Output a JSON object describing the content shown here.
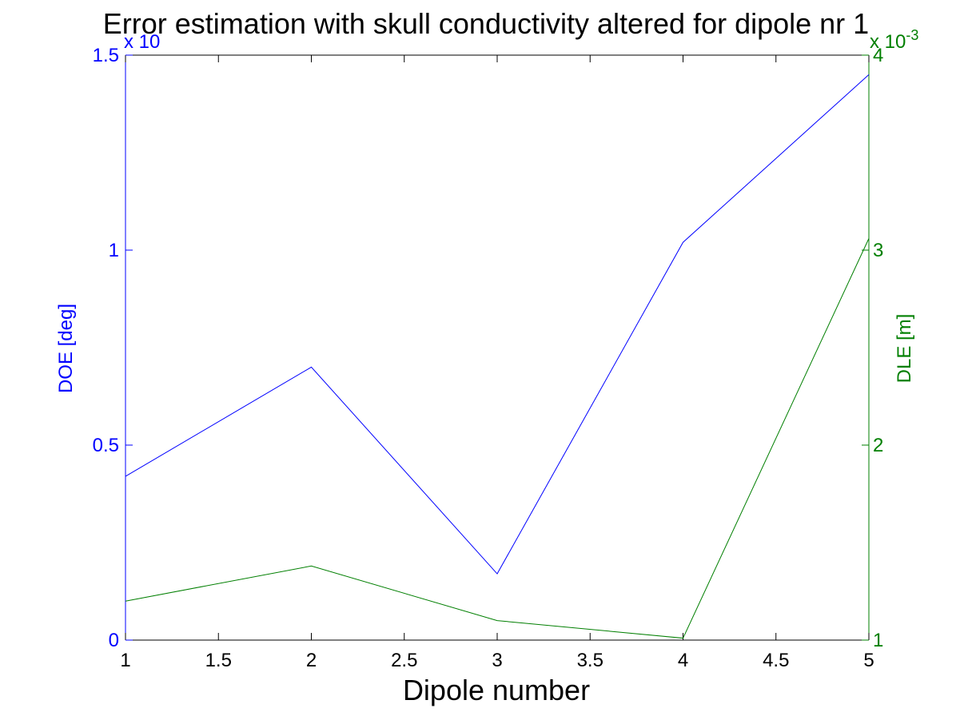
{
  "chart_data": {
    "type": "line",
    "title": "Error estimation with skull conductivity altered for dipole nr 1",
    "xlabel": "Dipole number",
    "xlim": [
      1,
      5
    ],
    "xticks": [
      1,
      1.5,
      2,
      2.5,
      3,
      3.5,
      4,
      4.5,
      5
    ],
    "xtick_labels": [
      "1",
      "1.5",
      "2",
      "2.5",
      "3",
      "3.5",
      "4",
      "4.5",
      "5"
    ],
    "x": [
      1,
      2,
      3,
      4,
      5
    ],
    "left_axis": {
      "label": "DOE [deg]",
      "color": "#0000ff",
      "ylim": [
        0,
        1.5
      ],
      "ticks": [
        0,
        0.5,
        1,
        1.5
      ],
      "tick_labels": [
        "0",
        "0.5",
        "1",
        "1.5"
      ],
      "multiplier": "x 10"
    },
    "right_axis": {
      "label": "DLE [m]",
      "color": "#007f00",
      "ylim": [
        1,
        4
      ],
      "ticks": [
        1,
        2,
        3,
        4
      ],
      "tick_labels": [
        "1",
        "2",
        "3",
        "4"
      ],
      "multiplier": "x 10",
      "multiplier_exp": "-3"
    },
    "series": [
      {
        "axis": "left",
        "color": "#0000ff",
        "values": [
          0.42,
          0.7,
          0.17,
          1.02,
          1.45
        ]
      },
      {
        "axis": "right",
        "color": "#007f00",
        "values": [
          1.2,
          1.38,
          1.1,
          1.01,
          3.06
        ]
      }
    ],
    "grid": false
  }
}
